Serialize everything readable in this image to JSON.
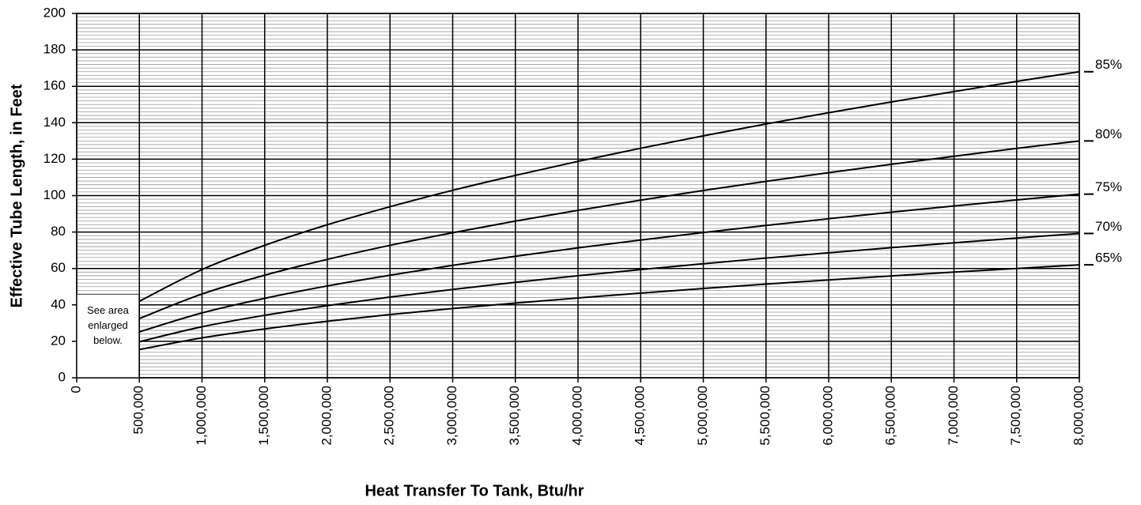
{
  "chart_data": {
    "type": "line",
    "x_label": "Heat Transfer To Tank, Btu/hr",
    "y_label": "Effective Tube Length, in Feet",
    "annotation": "See area enlarged below.",
    "x": [
      500000,
      1000000,
      1500000,
      2000000,
      2500000,
      3000000,
      3500000,
      4000000,
      4500000,
      5000000,
      5500000,
      6000000,
      6500000,
      7000000,
      7500000,
      8000000
    ],
    "series": [
      {
        "name": "85%",
        "color": "#000000",
        "values": [
          42,
          59.4,
          72.7,
          84,
          93.9,
          102.9,
          111.1,
          118.8,
          126,
          132.8,
          139.3,
          145.5,
          151.4,
          157.1,
          162.7,
          168
        ]
      },
      {
        "name": "80%",
        "color": "#000000",
        "values": [
          32.5,
          46,
          56.3,
          65,
          72.7,
          79.6,
          86,
          91.9,
          97.5,
          102.8,
          107.8,
          112.6,
          117.2,
          121.6,
          125.9,
          130
        ]
      },
      {
        "name": "75%",
        "color": "#000000",
        "values": [
          25.2,
          35.6,
          43.6,
          50.4,
          56.3,
          61.7,
          66.7,
          71.3,
          75.6,
          79.7,
          83.6,
          87.3,
          90.9,
          94.3,
          97.6,
          100.8
        ]
      },
      {
        "name": "70%",
        "color": "#000000",
        "values": [
          19.8,
          28,
          34.3,
          39.6,
          44.3,
          48.5,
          52.4,
          56,
          59.4,
          62.6,
          65.7,
          68.6,
          71.4,
          74.1,
          76.7,
          79.2
        ]
      },
      {
        "name": "65%",
        "color": "#000000",
        "values": [
          15.5,
          21.9,
          26.8,
          31,
          34.7,
          38,
          41,
          43.8,
          46.5,
          49,
          51.4,
          53.7,
          55.9,
          58,
          60,
          62
        ]
      }
    ],
    "xlim": [
      0,
      8000000
    ],
    "ylim": [
      0,
      200
    ],
    "xticks": [
      0,
      {
        "value": 500000,
        "label": "500,000"
      },
      {
        "value": 1000000,
        "label": "1,000,000"
      },
      {
        "value": 1500000,
        "label": "1,500,000"
      },
      {
        "value": 2000000,
        "label": "2,000,000"
      },
      {
        "value": 2500000,
        "label": "2,500,000"
      },
      {
        "value": 3000000,
        "label": "3,000,000"
      },
      {
        "value": 3500000,
        "label": "3,500,000"
      },
      {
        "value": 4000000,
        "label": "4,000,000"
      },
      {
        "value": 4500000,
        "label": "4,500,000"
      },
      {
        "value": 5000000,
        "label": "5,000,000"
      },
      {
        "value": 5500000,
        "label": "5,500,000"
      },
      {
        "value": 6000000,
        "label": "6,000,000"
      },
      {
        "value": 6500000,
        "label": "6,500,000"
      },
      {
        "value": 7000000,
        "label": "7,000,000"
      },
      {
        "value": 7500000,
        "label": "7,500,000"
      },
      {
        "value": 8000000,
        "label": "8,000,000"
      }
    ],
    "yticks": [
      0,
      20,
      40,
      60,
      80,
      100,
      120,
      140,
      160,
      180,
      200
    ],
    "grid": true,
    "minor_grid_step": 2
  }
}
